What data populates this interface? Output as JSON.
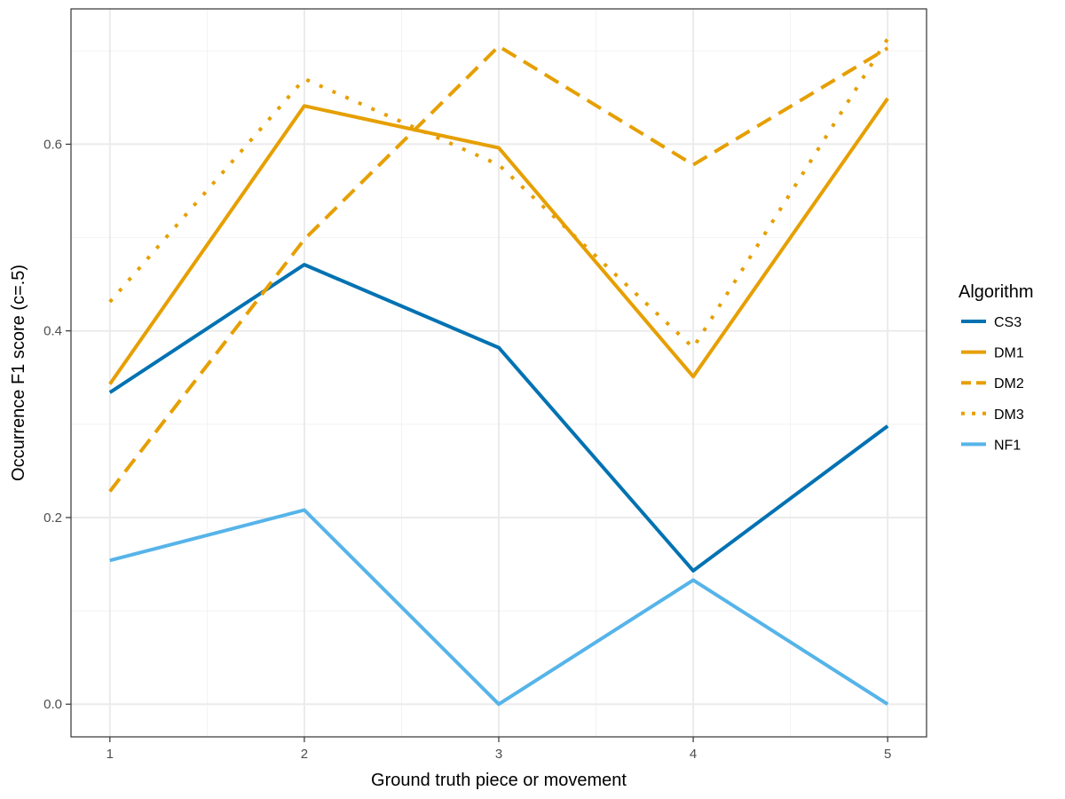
{
  "chart_data": {
    "type": "line",
    "title": "",
    "xlabel": "Ground truth piece or movement",
    "ylabel": "Occurrence F1 score (c=.5)",
    "x": [
      1,
      2,
      3,
      4,
      5
    ],
    "x_ticks": [
      "1",
      "2",
      "3",
      "4",
      "5"
    ],
    "y_ticks": [
      "0.0",
      "0.2",
      "0.4",
      "0.6"
    ],
    "xlim": [
      0.8,
      5.2
    ],
    "ylim": [
      -0.035,
      0.745
    ],
    "grid": true,
    "legend": {
      "title": "Algorithm",
      "position": "right"
    },
    "series": [
      {
        "name": "CS3",
        "color": "#0072B2",
        "linetype": "solid",
        "values": [
          0.334,
          0.471,
          0.382,
          0.143,
          0.298
        ]
      },
      {
        "name": "DM1",
        "color": "#E69F00",
        "linetype": "solid",
        "values": [
          0.343,
          0.641,
          0.596,
          0.351,
          0.649
        ]
      },
      {
        "name": "DM2",
        "color": "#E69F00",
        "linetype": "dashed",
        "values": [
          0.228,
          0.498,
          0.705,
          0.578,
          0.703
        ]
      },
      {
        "name": "DM3",
        "color": "#E69F00",
        "linetype": "dotted",
        "values": [
          0.431,
          0.67,
          0.578,
          0.382,
          0.713
        ]
      },
      {
        "name": "NF1",
        "color": "#56B4E9",
        "linetype": "solid",
        "values": [
          0.154,
          0.208,
          0.0,
          0.133,
          0.0
        ]
      }
    ]
  }
}
